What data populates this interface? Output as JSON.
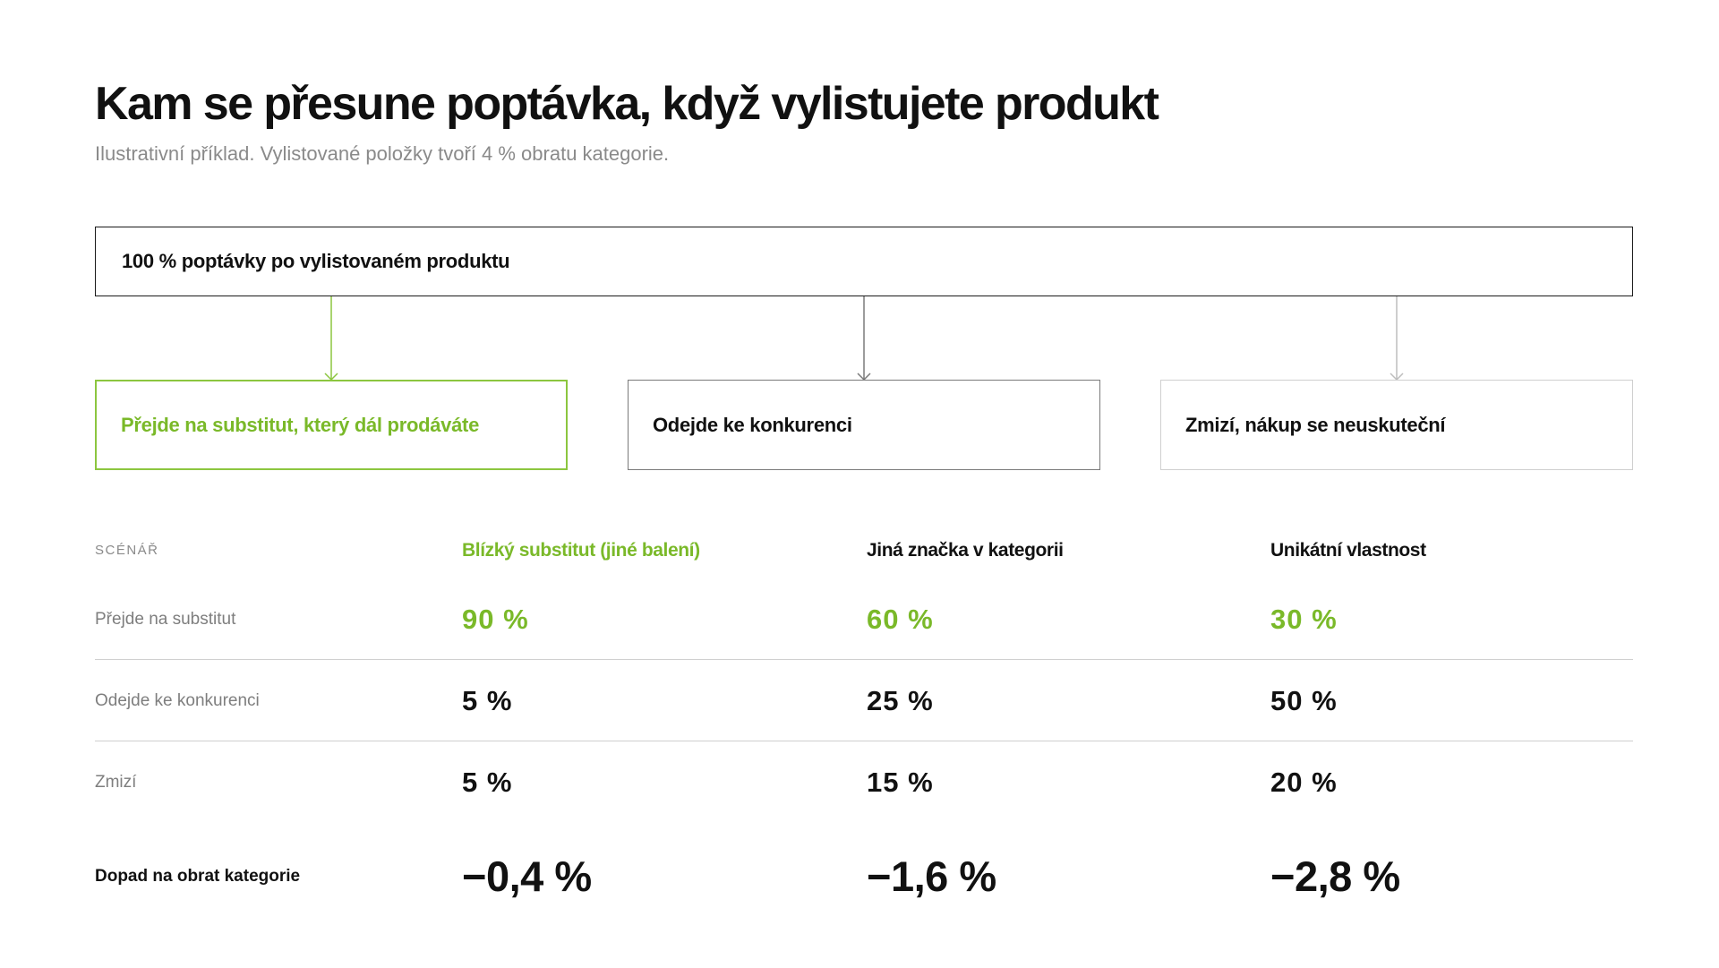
{
  "header": {
    "title": "Kam se přesune poptávka, když vylistujete produkt",
    "subtitle": "Ilustrativní příklad. Vylistované položky tvoří 4 % obratu kategorie."
  },
  "diagram": {
    "root": "100 % poptávky po vylistovaném produktu",
    "outcomes": [
      "Přejde na substitut, který dál prodáváte",
      "Odejde ke konkurenci",
      "Zmizí, nákup se neuskuteční"
    ]
  },
  "table": {
    "header": {
      "label": "SCÉNÁŘ",
      "scenarios": [
        "Blízký substitut (jiné balení)",
        "Jiná značka v kategorii",
        "Unikátní vlastnost"
      ]
    },
    "rows": [
      {
        "label": "Přejde na substitut",
        "values": [
          "90 %",
          "60 %",
          "30 %"
        ]
      },
      {
        "label": "Odejde ke konkurenci",
        "values": [
          "5 %",
          "25 %",
          "50 %"
        ]
      },
      {
        "label": "Zmizí",
        "values": [
          "5 %",
          "15 %",
          "20 %"
        ]
      }
    ],
    "impact": {
      "label": "Dopad na obrat kategorie",
      "values": [
        "−0,4 %",
        "−1,6 %",
        "−2,8 %"
      ]
    }
  },
  "colors": {
    "accent_green": "#7ab929",
    "text": "#111111",
    "muted": "#8a8a8a"
  }
}
